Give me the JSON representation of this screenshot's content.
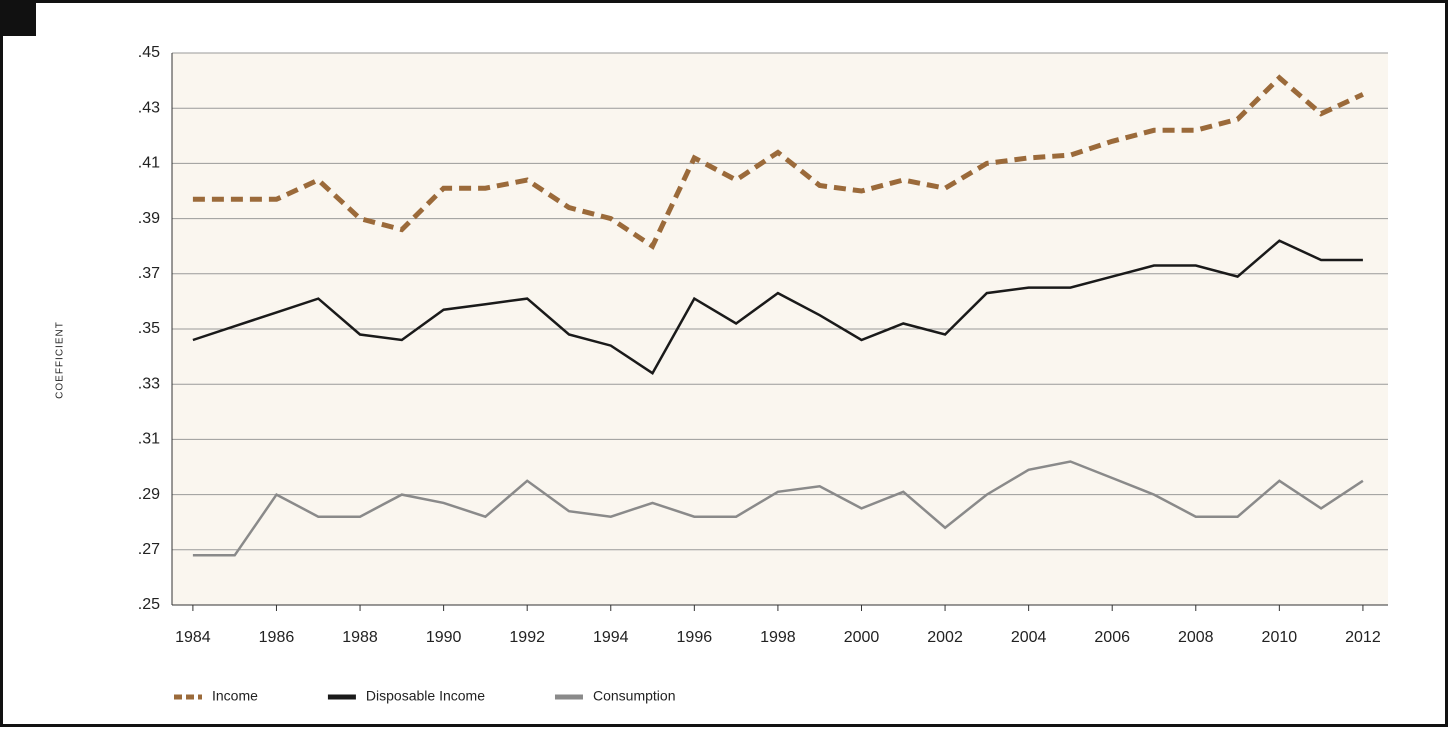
{
  "chart_data": {
    "type": "line",
    "y_label": "COEFFICIENT",
    "x": [
      1984,
      1985,
      1986,
      1987,
      1988,
      1989,
      1990,
      1991,
      1992,
      1993,
      1994,
      1995,
      1996,
      1997,
      1998,
      1999,
      2000,
      2001,
      2002,
      2003,
      2004,
      2005,
      2006,
      2007,
      2008,
      2009,
      2010,
      2011,
      2012
    ],
    "xlim": [
      1983.5,
      2012.6
    ],
    "xticks": [
      1984,
      1986,
      1988,
      1990,
      1992,
      1994,
      1996,
      1998,
      2000,
      2002,
      2004,
      2006,
      2008,
      2010,
      2012
    ],
    "ylim": [
      0.25,
      0.45
    ],
    "yticks": [
      {
        "value": 0.25,
        "label": ".25"
      },
      {
        "value": 0.27,
        "label": ".27"
      },
      {
        "value": 0.29,
        "label": ".29"
      },
      {
        "value": 0.31,
        "label": ".31"
      },
      {
        "value": 0.33,
        "label": ".33"
      },
      {
        "value": 0.35,
        "label": ".35"
      },
      {
        "value": 0.37,
        "label": ".37"
      },
      {
        "value": 0.39,
        "label": ".39"
      },
      {
        "value": 0.41,
        "label": ".41"
      },
      {
        "value": 0.43,
        "label": ".43"
      },
      {
        "value": 0.45,
        "label": ".45"
      }
    ],
    "grid": true,
    "legend": "bottom-left",
    "series": [
      {
        "name": "Income",
        "color": "#9b6a3a",
        "line_style": "dashed",
        "values": [
          0.397,
          0.397,
          0.397,
          0.404,
          0.39,
          0.386,
          0.401,
          0.401,
          0.404,
          0.394,
          0.39,
          0.38,
          0.412,
          0.404,
          0.414,
          0.402,
          0.4,
          0.404,
          0.401,
          0.41,
          0.412,
          0.413,
          0.418,
          0.422,
          0.422,
          0.426,
          0.441,
          0.428,
          0.435
        ]
      },
      {
        "name": "Disposable Income",
        "color": "#1a1a1a",
        "line_style": "solid",
        "values": [
          0.346,
          0.351,
          0.356,
          0.361,
          0.348,
          0.346,
          0.357,
          0.359,
          0.361,
          0.348,
          0.344,
          0.334,
          0.361,
          0.352,
          0.363,
          0.355,
          0.346,
          0.352,
          0.348,
          0.363,
          0.365,
          0.365,
          0.369,
          0.373,
          0.373,
          0.369,
          0.382,
          0.375,
          0.375
        ]
      },
      {
        "name": "Consumption",
        "color": "#8a8a8a",
        "line_style": "solid",
        "values": [
          0.268,
          0.268,
          0.29,
          0.282,
          0.282,
          0.29,
          0.287,
          0.282,
          0.295,
          0.284,
          0.282,
          0.287,
          0.282,
          0.282,
          0.291,
          0.293,
          0.285,
          0.291,
          0.278,
          0.29,
          0.299,
          0.302,
          0.296,
          0.29,
          0.282,
          0.282,
          0.295,
          0.285,
          0.295
        ]
      }
    ]
  }
}
